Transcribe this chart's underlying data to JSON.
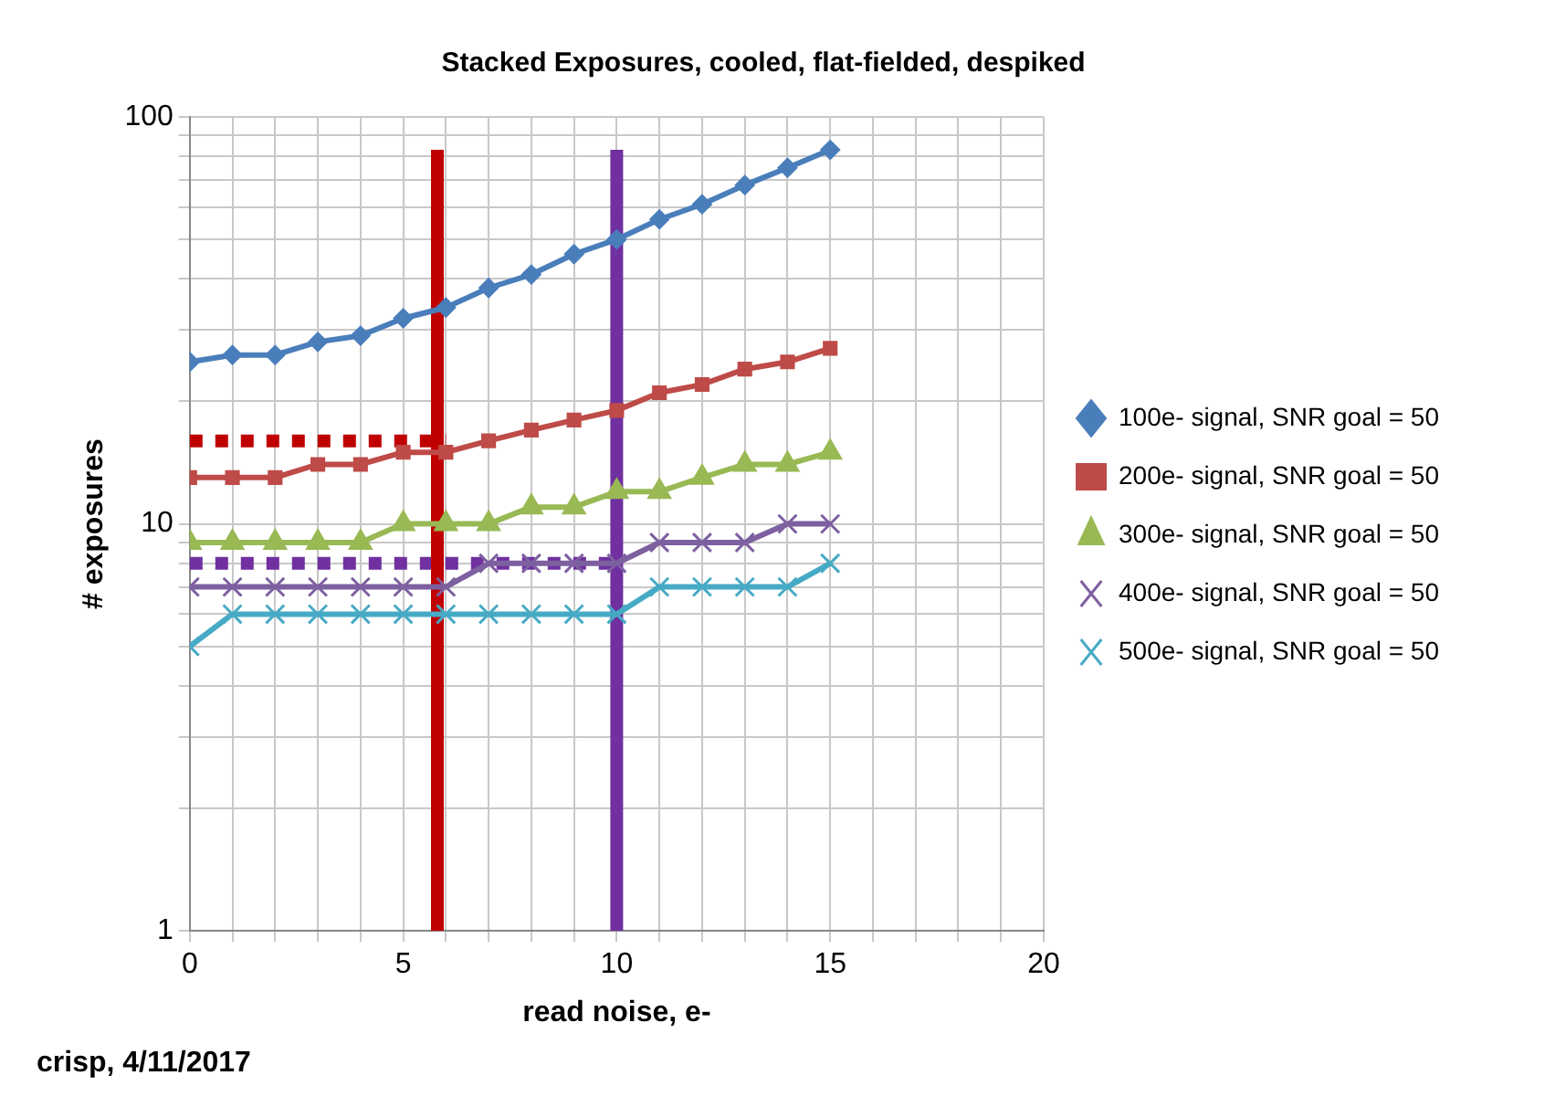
{
  "chart_data": {
    "type": "line",
    "title": "Stacked Exposures, cooled, flat-fielded, despiked",
    "xlabel": "read noise, e-",
    "ylabel": "# exposures",
    "annotations": [
      "crisp, 4/11/2017"
    ],
    "x": [
      0,
      1,
      2,
      3,
      4,
      5,
      6,
      7,
      8,
      9,
      10,
      11,
      12,
      13,
      14,
      15
    ],
    "series": [
      {
        "name": "100e- signal, SNR goal = 50",
        "color": "#4a7ebb",
        "marker": "diamond",
        "values": [
          25,
          26,
          26,
          28,
          29,
          32,
          34,
          38,
          41,
          46,
          50,
          56,
          61,
          68,
          75,
          83
        ]
      },
      {
        "name": "200e- signal, SNR goal = 50",
        "color": "#be4b48",
        "marker": "square",
        "values": [
          13,
          13,
          13,
          14,
          14,
          15,
          15,
          16,
          17,
          18,
          19,
          21,
          22,
          24,
          25,
          27
        ]
      },
      {
        "name": "300e- signal, SNR goal = 50",
        "color": "#98b954",
        "marker": "triangle",
        "values": [
          9,
          9,
          9,
          9,
          9,
          10,
          10,
          10,
          11,
          11,
          12,
          12,
          13,
          14,
          14,
          15
        ]
      },
      {
        "name": "400e- signal, SNR goal = 50",
        "color": "#7d60a0",
        "marker": "cross",
        "values": [
          7,
          7,
          7,
          7,
          7,
          7,
          7,
          8,
          8,
          8,
          8,
          9,
          9,
          9,
          10,
          10
        ]
      },
      {
        "name": "500e- signal, SNR goal = 50",
        "color": "#46aac5",
        "marker": "cross",
        "values": [
          5,
          6,
          6,
          6,
          6,
          6,
          6,
          6,
          6,
          6,
          6,
          7,
          7,
          7,
          7,
          8
        ]
      },
      {
        "type": "line",
        "color": "#c00000",
        "marker": "none",
        "line_style": "solid",
        "x": [
          5.8,
          5.8
        ],
        "values": [
          1,
          83
        ]
      },
      {
        "type": "line",
        "color": "#7030a0",
        "marker": "none",
        "line_style": "solid",
        "x": [
          10,
          10
        ],
        "values": [
          1,
          83
        ]
      },
      {
        "type": "line",
        "color": "#c00000",
        "marker": "none",
        "line_style": "dotted",
        "x": [
          0,
          6
        ],
        "values": [
          16,
          16
        ]
      },
      {
        "type": "line",
        "color": "#7030a0",
        "marker": "none",
        "line_style": "dotted",
        "x": [
          0,
          10
        ],
        "values": [
          8,
          8
        ]
      }
    ],
    "log": "y",
    "xlim": [
      0,
      20
    ],
    "xticks": [
      0,
      {
        "value": 1,
        "label": null
      },
      {
        "value": 2,
        "label": null
      },
      {
        "value": 3,
        "label": null
      },
      {
        "value": 4,
        "label": null
      },
      5,
      {
        "value": 6,
        "label": null
      },
      {
        "value": 7,
        "label": null
      },
      {
        "value": 8,
        "label": null
      },
      {
        "value": 9,
        "label": null
      },
      10,
      {
        "value": 11,
        "label": null
      },
      {
        "value": 12,
        "label": null
      },
      {
        "value": 13,
        "label": null
      },
      {
        "value": 14,
        "label": null
      },
      15,
      {
        "value": 16,
        "label": null
      },
      {
        "value": 17,
        "label": null
      },
      {
        "value": 18,
        "label": null
      },
      {
        "value": 19,
        "label": null
      },
      20
    ],
    "ylim": [
      1,
      100
    ],
    "yticks": [
      1,
      {
        "value": 2,
        "label": null
      },
      {
        "value": 3,
        "label": null
      },
      {
        "value": 4,
        "label": null
      },
      {
        "value": 5,
        "label": null
      },
      {
        "value": 6,
        "label": null
      },
      {
        "value": 7,
        "label": null
      },
      {
        "value": 8,
        "label": null
      },
      {
        "value": 9,
        "label": null
      },
      10,
      {
        "value": 20,
        "label": null
      },
      {
        "value": 30,
        "label": null
      },
      {
        "value": 40,
        "label": null
      },
      {
        "value": 50,
        "label": null
      },
      {
        "value": 60,
        "label": null
      },
      {
        "value": 70,
        "label": null
      },
      {
        "value": 80,
        "label": null
      },
      {
        "value": 90,
        "label": null
      },
      100
    ],
    "grid": true,
    "legend": "right"
  }
}
